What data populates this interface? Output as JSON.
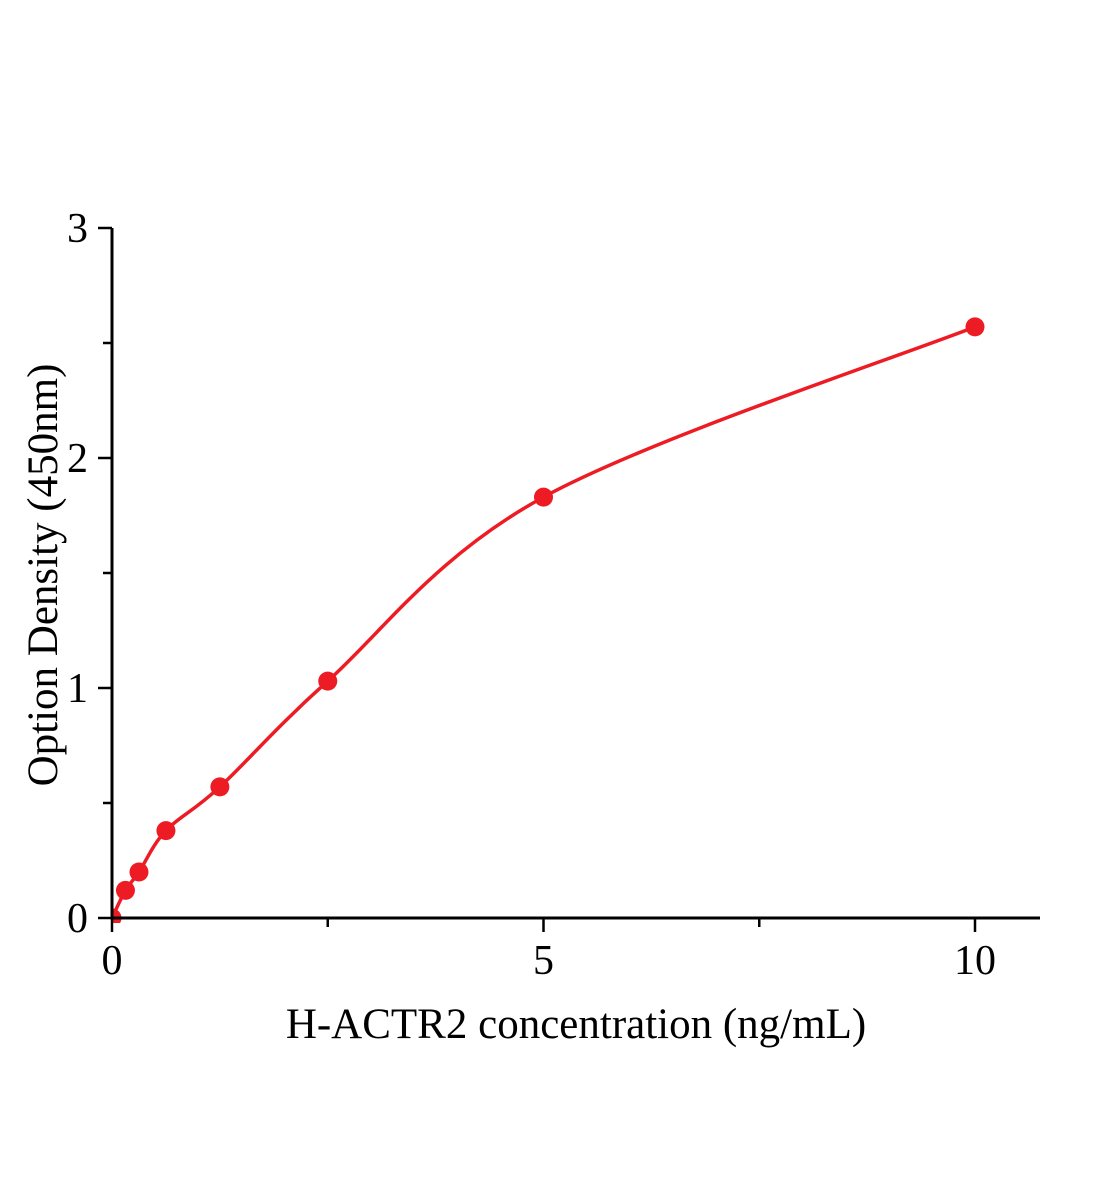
{
  "chart_data": {
    "type": "scatter",
    "title": "",
    "xlabel": "H-ACTR2 concentration (ng/mL)",
    "ylabel": "Option Density (450nm)",
    "x": [
      0,
      0.156,
      0.3125,
      0.625,
      1.25,
      2.5,
      5,
      10
    ],
    "y": [
      0,
      0.12,
      0.2,
      0.38,
      0.57,
      1.03,
      1.83,
      2.57
    ],
    "curve": "smooth-fit-through-points",
    "xlim": [
      0,
      10.75
    ],
    "ylim": [
      0,
      3
    ],
    "x_major_ticks": [
      0,
      5,
      10
    ],
    "x_minor_ticks": [
      2.5,
      7.5
    ],
    "y_major_ticks": [
      0,
      1,
      2,
      3
    ],
    "y_minor_ticks": [
      0.5,
      1.5,
      2.5
    ],
    "grid": false,
    "legend": false,
    "series_color": "#ed1c24",
    "axis_color": "#000000",
    "marker": "circle"
  }
}
